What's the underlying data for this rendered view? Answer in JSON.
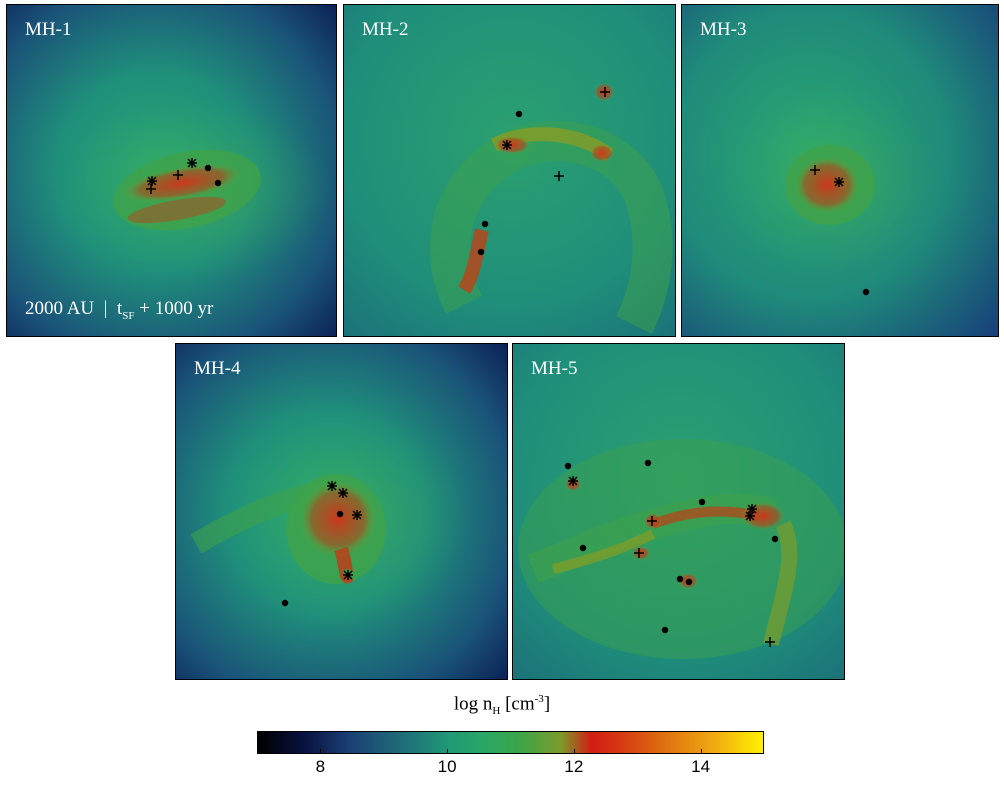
{
  "panels": [
    {
      "label": "MH-1"
    },
    {
      "label": "MH-2"
    },
    {
      "label": "MH-3"
    },
    {
      "label": "MH-4"
    },
    {
      "label": "MH-5"
    }
  ],
  "scalebar": {
    "length": "2000 AU",
    "sep": "|",
    "t": "t",
    "sub": "SF",
    "rest": " + 1000 yr"
  },
  "colorbar": {
    "title_main": "log n",
    "title_sub": "H",
    "title_unit": " [cm",
    "title_sup": "-3",
    "title_close": "]",
    "ticks": [
      "8",
      "10",
      "12",
      "14"
    ],
    "range": [
      7,
      15
    ]
  },
  "colors": {
    "low": "#08113f",
    "mid": "#2aa765",
    "high": "#d21d14",
    "max": "#fff200"
  }
}
